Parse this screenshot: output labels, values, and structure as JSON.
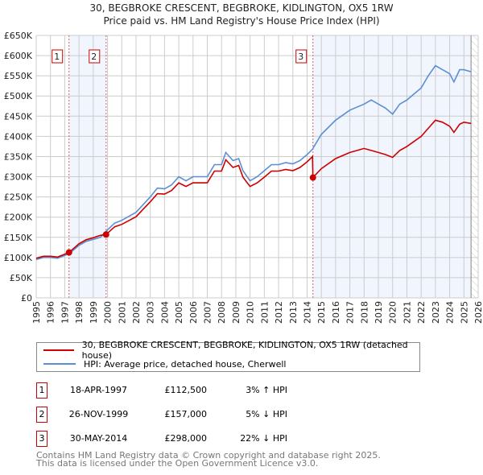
{
  "title_line1": "30, BEGBROKE CRESCENT, BEGBROKE, KIDLINGTON, OX5 1RW",
  "title_line2": "Price paid vs. HM Land Registry's House Price Index (HPI)",
  "chart_data": {
    "type": "line",
    "ylim": [
      0,
      650000
    ],
    "xlim": [
      1995,
      2026
    ],
    "yticks": [
      "£0",
      "£50K",
      "£100K",
      "£150K",
      "£200K",
      "£250K",
      "£300K",
      "£350K",
      "£400K",
      "£450K",
      "£500K",
      "£550K",
      "£600K",
      "£650K"
    ],
    "xticks": [
      "1995",
      "1996",
      "1997",
      "1998",
      "1999",
      "2000",
      "2001",
      "2002",
      "2003",
      "2004",
      "2005",
      "2006",
      "2007",
      "2008",
      "2009",
      "2010",
      "2011",
      "2012",
      "2013",
      "2014",
      "2015",
      "2016",
      "2017",
      "2018",
      "2019",
      "2020",
      "2021",
      "2022",
      "2023",
      "2024",
      "2025",
      "2026"
    ],
    "grid": true,
    "legend_placement": "below",
    "shaded_ranges": [
      [
        1997.3,
        1999.9
      ],
      [
        2014.41,
        2025.5
      ]
    ],
    "hatched_range": [
      2025.5,
      2026
    ],
    "series": [
      {
        "name": "30, BEGBROKE CRESCENT, BEGBROKE, KIDLINGTON, OX5 1RW (detached house)",
        "color": "#cc0000",
        "x": [
          1995,
          1995.5,
          1996,
          1996.5,
          1997,
          1997.3,
          1998,
          1998.5,
          1999,
          1999.5,
          1999.9,
          2000.5,
          2001,
          2002,
          2003,
          2003.5,
          2004,
          2004.5,
          2005,
          2005.5,
          2006,
          2007,
          2007.5,
          2008,
          2008.3,
          2008.8,
          2009.2,
          2009.5,
          2010,
          2010.5,
          2011,
          2011.5,
          2012,
          2012.5,
          2013,
          2013.5,
          2014,
          2014.38,
          2014.41,
          2015,
          2016,
          2017,
          2018,
          2018.5,
          2019,
          2019.5,
          2020,
          2020.5,
          2021,
          2022,
          2022.5,
          2023,
          2023.5,
          2024,
          2024.3,
          2024.7,
          2025,
          2025.5
        ],
        "values": [
          98,
          103,
          103,
          101,
          108,
          112.5,
          134,
          144,
          149,
          155,
          157,
          176,
          182,
          201,
          238,
          258,
          257,
          266,
          285,
          276,
          285,
          285,
          314,
          314,
          342,
          323,
          328,
          299,
          276,
          285,
          299,
          314,
          314,
          318,
          315,
          323,
          337,
          350,
          298,
          320,
          345,
          360,
          370,
          365,
          360,
          355,
          348,
          365,
          375,
          400,
          420,
          440,
          435,
          425,
          410,
          430,
          435,
          432
        ]
      },
      {
        "name": "HPI: Average price, detached house, Cherwell",
        "color": "#5b8fd4",
        "x": [
          1995,
          1995.5,
          1996,
          1996.5,
          1997,
          1997.3,
          1998,
          1998.5,
          1999,
          1999.5,
          1999.9,
          2000.5,
          2001,
          2002,
          2003,
          2003.5,
          2004,
          2004.5,
          2005,
          2005.5,
          2006,
          2007,
          2007.5,
          2008,
          2008.3,
          2008.8,
          2009.2,
          2009.5,
          2010,
          2010.5,
          2011,
          2011.5,
          2012,
          2012.5,
          2013,
          2013.5,
          2014,
          2014.38,
          2014.41,
          2015,
          2016,
          2017,
          2018,
          2018.5,
          2019,
          2019.5,
          2020,
          2020.5,
          2021,
          2022,
          2022.5,
          2023,
          2023.5,
          2024,
          2024.3,
          2024.7,
          2025,
          2025.5
        ],
        "values": [
          95,
          100,
          100,
          98,
          105,
          109,
          130,
          140,
          145,
          150,
          165,
          185,
          192,
          212,
          250,
          272,
          270,
          280,
          300,
          290,
          300,
          300,
          330,
          330,
          360,
          340,
          345,
          315,
          290,
          300,
          315,
          330,
          330,
          335,
          332,
          340,
          355,
          368,
          370,
          405,
          440,
          465,
          480,
          490,
          480,
          470,
          455,
          480,
          490,
          520,
          550,
          575,
          565,
          555,
          535,
          565,
          565,
          560
        ]
      }
    ],
    "sales": [
      {
        "label": "1",
        "x": 1997.3,
        "value": 112.5
      },
      {
        "label": "2",
        "x": 1999.9,
        "value": 157
      },
      {
        "label": "3",
        "x": 2014.41,
        "value": 298
      }
    ]
  },
  "legend": {
    "property": "30, BEGBROKE CRESCENT, BEGBROKE, KIDLINGTON, OX5 1RW (detached house)",
    "hpi": "HPI: Average price, detached house, Cherwell"
  },
  "transactions": [
    {
      "num": "1",
      "date": "18-APR-1997",
      "price": "£112,500",
      "hpi": "3% ↑ HPI"
    },
    {
      "num": "2",
      "date": "26-NOV-1999",
      "price": "£157,000",
      "hpi": "5% ↓ HPI"
    },
    {
      "num": "3",
      "date": "30-MAY-2014",
      "price": "£298,000",
      "hpi": "22% ↓ HPI"
    }
  ],
  "footer": {
    "line1": "Contains HM Land Registry data © Crown copyright and database right 2025.",
    "line2": "This data is licensed under the Open Government Licence v3.0."
  }
}
